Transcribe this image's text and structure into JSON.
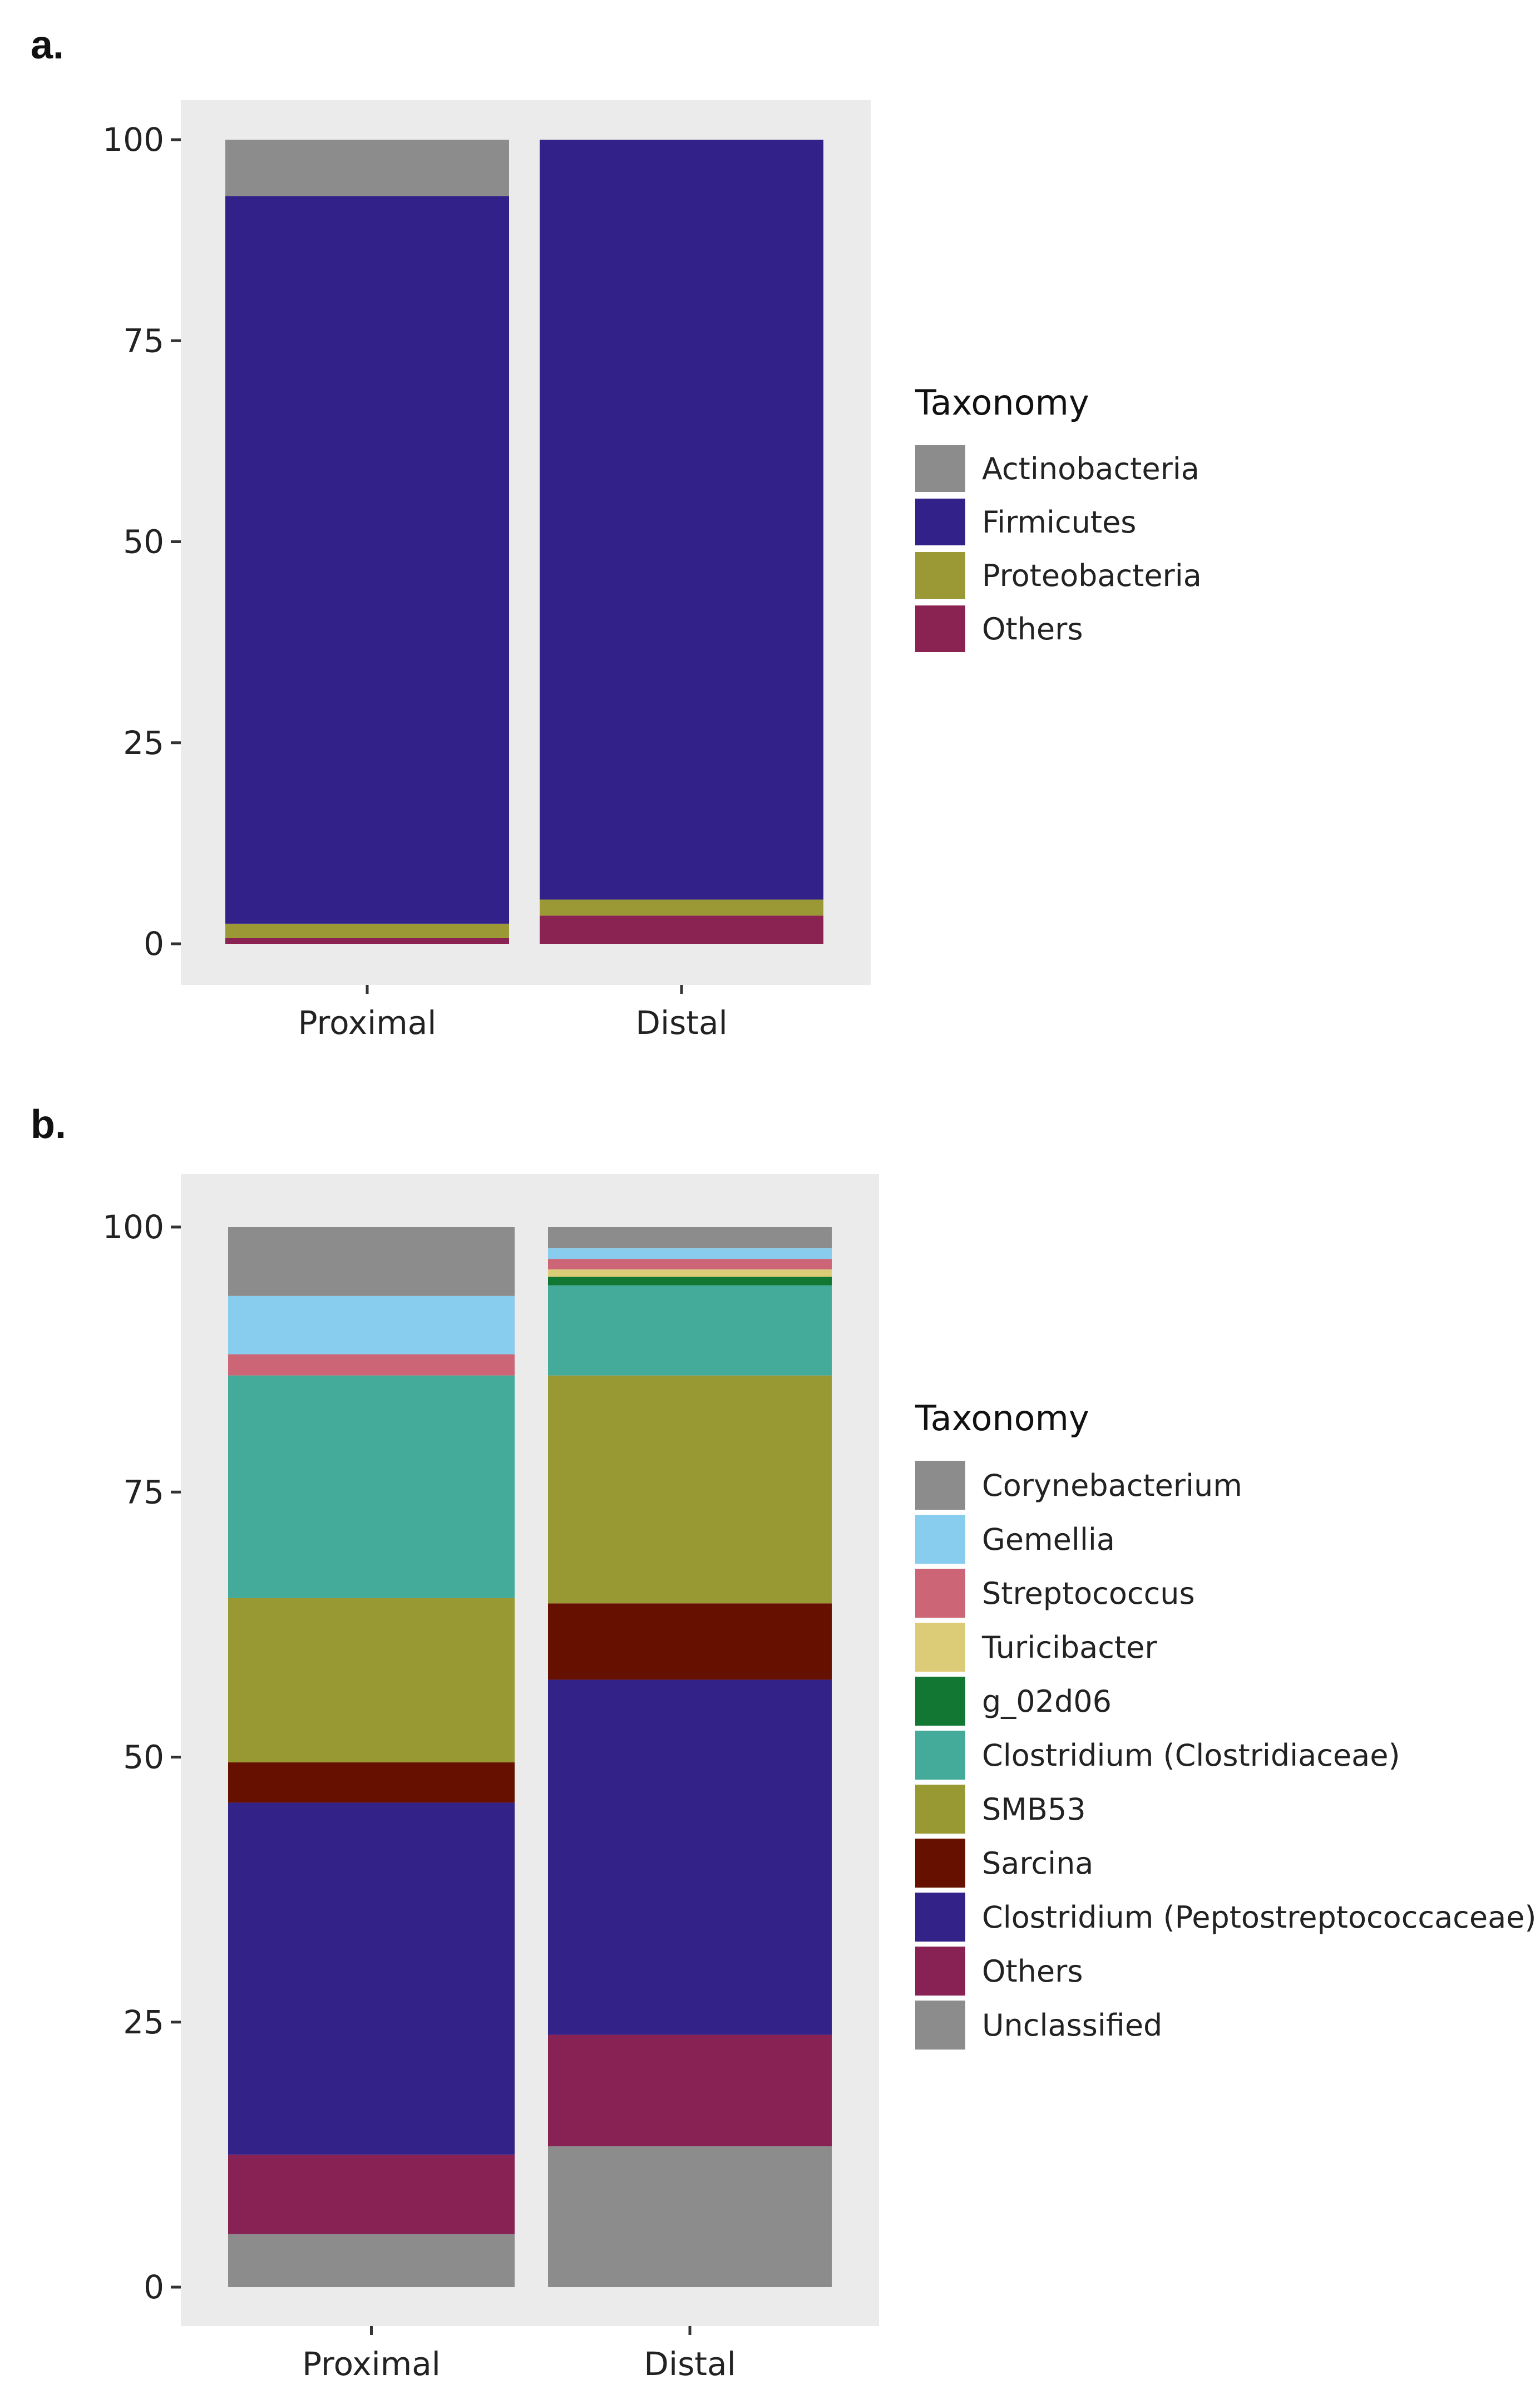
{
  "chart_data": [
    {
      "panel_label": "a.",
      "type": "bar",
      "stacked": true,
      "categories": [
        "Proximal",
        "Distal"
      ],
      "ylim": [
        0,
        100
      ],
      "yticks": [
        0,
        25,
        50,
        75,
        100
      ],
      "grid": false,
      "legend_title": "Taxonomy",
      "legend_position": "right",
      "series": [
        {
          "name": "Actinobacteria",
          "color": "#8c8c8c",
          "values": [
            7,
            0
          ]
        },
        {
          "name": "Firmicutes",
          "color": "#322189",
          "values": [
            90.5,
            94.5
          ]
        },
        {
          "name": "Proteobacteria",
          "color": "#9b9836",
          "values": [
            1.8,
            2
          ]
        },
        {
          "name": "Others",
          "color": "#8a2252",
          "values": [
            0.7,
            3.5
          ]
        }
      ]
    },
    {
      "panel_label": "b.",
      "type": "bar",
      "stacked": true,
      "categories": [
        "Proximal",
        "Distal"
      ],
      "ylim": [
        0,
        100
      ],
      "yticks": [
        0,
        25,
        50,
        75,
        100
      ],
      "grid": false,
      "legend_title": "Taxonomy",
      "legend_position": "right",
      "series": [
        {
          "name": "Corynebacterium",
          "color": "#8c8c8c",
          "values": [
            6.5,
            2
          ]
        },
        {
          "name": "Gemellia",
          "color": "#88ccee",
          "values": [
            5.5,
            1
          ]
        },
        {
          "name": "Streptococcus",
          "color": "#cc6677",
          "values": [
            2,
            1
          ]
        },
        {
          "name": "Turicibacter",
          "color": "#ddcc77",
          "values": [
            0,
            0.7
          ]
        },
        {
          "name": "g_02d06",
          "color": "#117733",
          "values": [
            0,
            0.8
          ]
        },
        {
          "name": "Clostridium (Clostridiaceae)",
          "color": "#44aa99",
          "values": [
            21,
            8.5
          ]
        },
        {
          "name": "SMB53",
          "color": "#999933",
          "values": [
            15.5,
            21.5
          ]
        },
        {
          "name": "Sarcina",
          "color": "#661100",
          "values": [
            3.8,
            7.2
          ]
        },
        {
          "name": "Clostridium (Peptostreptococcaceae)",
          "color": "#332288",
          "values": [
            33.2,
            33.5
          ]
        },
        {
          "name": "Others",
          "color": "#882255",
          "values": [
            7.5,
            10.5
          ]
        },
        {
          "name": "Unclassified",
          "color": "#8c8c8c",
          "values": [
            5,
            13.3
          ]
        }
      ]
    }
  ]
}
